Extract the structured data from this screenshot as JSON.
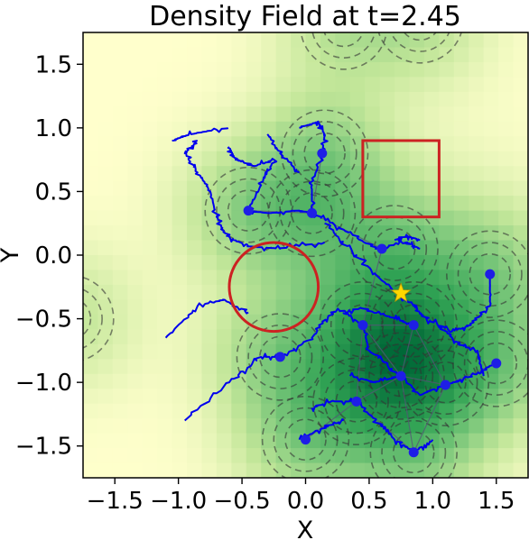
{
  "chart_data": {
    "type": "heatmap",
    "title": "Density Field at t=2.45",
    "xlabel": "X",
    "ylabel": "Y",
    "xlim": [
      -1.75,
      1.75
    ],
    "ylim": [
      -1.75,
      1.75
    ],
    "x_ticks": [
      {
        "value": -1.5,
        "label": "−1.5"
      },
      {
        "value": -1.0,
        "label": "−1.0"
      },
      {
        "value": -0.5,
        "label": "−0.5"
      },
      {
        "value": 0.0,
        "label": "0.0"
      },
      {
        "value": 0.5,
        "label": "0.5"
      },
      {
        "value": 1.0,
        "label": "1.0"
      },
      {
        "value": 1.5,
        "label": "1.5"
      }
    ],
    "y_ticks": [
      {
        "value": 1.5,
        "label": "1.5"
      },
      {
        "value": 1.0,
        "label": "1.0"
      },
      {
        "value": 0.5,
        "label": "0.5"
      },
      {
        "value": 0.0,
        "label": "0.0"
      },
      {
        "value": -0.5,
        "label": "−0.5"
      },
      {
        "value": -1.0,
        "label": "−1.0"
      },
      {
        "value": -1.5,
        "label": "−1.5"
      }
    ],
    "colormap": [
      "#ffffcc",
      "#c2e699",
      "#78c679",
      "#31a354",
      "#006837"
    ],
    "grid_resolution": 30,
    "density_sources": [
      {
        "x": 0.15,
        "y": 0.8,
        "w": 1.0
      },
      {
        "x": -0.45,
        "y": 0.35,
        "w": 1.0
      },
      {
        "x": 0.05,
        "y": 0.33,
        "w": 1.0
      },
      {
        "x": 0.7,
        "y": 0.05,
        "w": 0.9
      },
      {
        "x": 1.45,
        "y": -0.15,
        "w": 1.0
      },
      {
        "x": 0.45,
        "y": -0.55,
        "w": 1.0
      },
      {
        "x": 0.85,
        "y": -0.55,
        "w": 0.9
      },
      {
        "x": -0.2,
        "y": -0.8,
        "w": 1.0
      },
      {
        "x": 0.75,
        "y": -0.95,
        "w": 1.0
      },
      {
        "x": 1.1,
        "y": -1.0,
        "w": 0.9
      },
      {
        "x": 0.4,
        "y": -1.15,
        "w": 1.0
      },
      {
        "x": 1.5,
        "y": -0.85,
        "w": 0.9
      },
      {
        "x": 0.0,
        "y": -1.45,
        "w": 1.0
      },
      {
        "x": 0.85,
        "y": -1.55,
        "w": 1.0
      },
      {
        "x": 0.3,
        "y": 1.8,
        "w": 0.7
      },
      {
        "x": 0.9,
        "y": 1.85,
        "w": 0.7
      },
      {
        "x": -1.85,
        "y": -0.5,
        "w": 0.6
      }
    ],
    "agents": [
      {
        "x": 0.13,
        "y": 0.8
      },
      {
        "x": -0.45,
        "y": 0.35
      },
      {
        "x": 0.05,
        "y": 0.33
      },
      {
        "x": 0.6,
        "y": 0.05
      },
      {
        "x": 1.45,
        "y": -0.15
      },
      {
        "x": 0.45,
        "y": -0.55
      },
      {
        "x": 0.85,
        "y": -0.55
      },
      {
        "x": -0.2,
        "y": -0.8
      },
      {
        "x": 0.75,
        "y": -0.95
      },
      {
        "x": 0.4,
        "y": -1.15
      },
      {
        "x": 1.1,
        "y": -1.02
      },
      {
        "x": 1.5,
        "y": -0.85
      },
      {
        "x": 0.0,
        "y": -1.45
      },
      {
        "x": 0.85,
        "y": -1.55
      }
    ],
    "trajectories": [
      [
        [
          -0.05,
          1.0
        ],
        [
          0.1,
          1.05
        ],
        [
          0.15,
          0.95
        ],
        [
          0.13,
          0.8
        ],
        [
          0.05,
          0.55
        ],
        [
          0.05,
          0.33
        ],
        [
          0.3,
          0.2
        ],
        [
          0.55,
          0.05
        ],
        [
          0.8,
          0.1
        ],
        [
          0.9,
          0.05
        ]
      ],
      [
        [
          -0.6,
          0.85
        ],
        [
          -0.55,
          0.75
        ],
        [
          -0.4,
          0.7
        ],
        [
          -0.25,
          0.75
        ],
        [
          -0.35,
          0.55
        ],
        [
          -0.45,
          0.35
        ],
        [
          -0.3,
          0.33
        ],
        [
          -0.05,
          0.35
        ],
        [
          0.05,
          0.33
        ]
      ],
      [
        [
          -0.85,
          0.9
        ],
        [
          -0.95,
          0.8
        ],
        [
          -0.85,
          0.65
        ],
        [
          -0.75,
          0.5
        ],
        [
          -0.7,
          0.3
        ],
        [
          -0.62,
          0.15
        ],
        [
          -0.45,
          0.07
        ],
        [
          -0.2,
          0.05
        ],
        [
          0.15,
          0.1
        ]
      ],
      [
        [
          -0.62,
          1.0
        ],
        [
          -0.9,
          0.95
        ],
        [
          -1.05,
          0.9
        ]
      ],
      [
        [
          -0.3,
          0.95
        ],
        [
          -0.2,
          0.8
        ],
        [
          -0.05,
          0.65
        ]
      ],
      [
        [
          -1.1,
          -0.65
        ],
        [
          -0.85,
          -0.4
        ],
        [
          -0.65,
          -0.35
        ],
        [
          -0.45,
          -0.45
        ]
      ],
      [
        [
          0.15,
          0.25
        ],
        [
          0.4,
          0.0
        ],
        [
          0.6,
          -0.2
        ],
        [
          0.85,
          -0.4
        ],
        [
          0.95,
          -0.5
        ],
        [
          1.15,
          -0.6
        ],
        [
          1.3,
          -0.55
        ],
        [
          1.45,
          -0.4
        ],
        [
          1.45,
          -0.15
        ]
      ],
      [
        [
          -0.95,
          -1.3
        ],
        [
          -0.6,
          -1.0
        ],
        [
          -0.35,
          -0.8
        ],
        [
          -0.2,
          -0.8
        ],
        [
          0.05,
          -0.65
        ],
        [
          0.2,
          -0.45
        ],
        [
          0.45,
          -0.42
        ],
        [
          0.7,
          -0.5
        ],
        [
          0.85,
          -0.55
        ]
      ],
      [
        [
          0.3,
          -0.45
        ],
        [
          0.45,
          -0.55
        ],
        [
          0.5,
          -0.75
        ],
        [
          0.75,
          -0.95
        ],
        [
          0.9,
          -1.1
        ],
        [
          1.1,
          -1.02
        ],
        [
          1.3,
          -0.95
        ],
        [
          1.5,
          -0.85
        ]
      ],
      [
        [
          0.05,
          -1.2
        ],
        [
          0.2,
          -1.15
        ],
        [
          0.4,
          -1.15
        ],
        [
          0.55,
          -1.3
        ],
        [
          0.7,
          -1.45
        ],
        [
          0.85,
          -1.55
        ],
        [
          1.0,
          -1.45
        ]
      ],
      [
        [
          -0.05,
          -1.45
        ],
        [
          0.15,
          -1.35
        ],
        [
          0.3,
          -1.3
        ]
      ],
      [
        [
          0.35,
          -0.95
        ],
        [
          0.55,
          -1.0
        ],
        [
          0.75,
          -0.95
        ]
      ],
      [
        [
          1.05,
          -0.55
        ],
        [
          1.2,
          -0.7
        ],
        [
          1.35,
          -0.75
        ],
        [
          1.4,
          -0.95
        ]
      ],
      [
        [
          0.7,
          0.12
        ],
        [
          0.8,
          0.15
        ],
        [
          0.9,
          0.12
        ]
      ]
    ],
    "target": {
      "x": 0.75,
      "y": -0.3
    },
    "obstacles": [
      {
        "shape": "circle",
        "cx": -0.25,
        "cy": -0.25,
        "r": 0.35
      },
      {
        "shape": "rect",
        "x0": 0.45,
        "y0": 0.3,
        "x1": 1.05,
        "y1": 0.9
      }
    ],
    "grid": false,
    "colors": {
      "trajectory": "#0000ee",
      "agent": "#1e1ee6",
      "link": "#555577",
      "obstacle": "#cc2222",
      "target": "#ffd700",
      "contour": "#333333"
    }
  }
}
